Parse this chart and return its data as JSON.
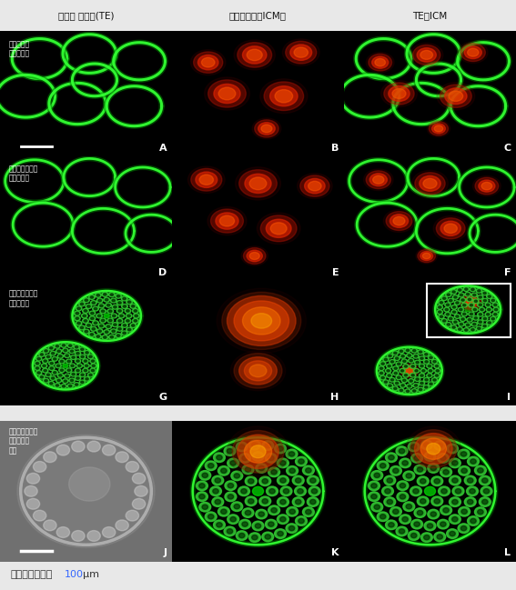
{
  "fig_width": 5.67,
  "fig_height": 6.49,
  "dpi": 100,
  "bg_color": "#000000",
  "fig_bg_color": "#e8e8e8",
  "col_headers": [
    "外側の 細胞群(TE)",
    "内部細胞塊（ICM）",
    "TE＋ICM"
  ],
  "panel_labels": [
    "A",
    "B",
    "C",
    "D",
    "E",
    "F",
    "G",
    "H",
    "I",
    "J",
    "K",
    "L"
  ],
  "caption_prefix": "スケールバーは",
  "caption_100": "100",
  "caption_unit": "μm",
  "caption_color_normal": "#333333",
  "caption_color_100": "#3366ff",
  "green_ring": "#22cc22",
  "green_bright": "#44ff44",
  "red_icm": "#cc2200",
  "red_bright": "#ff4400"
}
